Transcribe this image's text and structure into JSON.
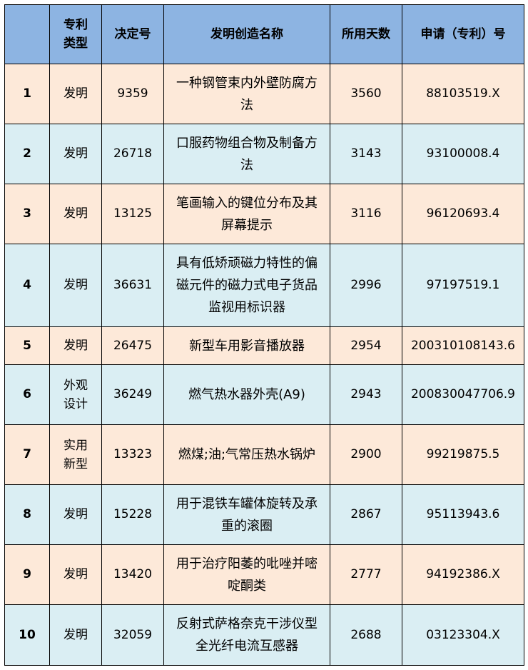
{
  "colors": {
    "header": "#8db4e2",
    "row_a": "#fde9d9",
    "row_b": "#daeef3"
  },
  "headers": [
    "",
    "专利类型",
    "决定号",
    "发明创造名称",
    "所用天数",
    "申请（专利）号"
  ],
  "rows": [
    {
      "no": "1",
      "type": "发明",
      "decision": "9359",
      "name": "一种钢管束内外壁防腐方法",
      "days": "3560",
      "app": "88103519.X"
    },
    {
      "no": "2",
      "type": "发明",
      "decision": "26718",
      "name": "口服药物组合物及制备方法",
      "days": "3143",
      "app": "93100008.4"
    },
    {
      "no": "3",
      "type": "发明",
      "decision": "13125",
      "name": "笔画输入的键位分布及其屏幕提示",
      "days": "3116",
      "app": "96120693.4"
    },
    {
      "no": "4",
      "type": "发明",
      "decision": "36631",
      "name": "具有低矫顽磁力特性的偏磁元件的磁力式电子货品监视用标识器",
      "days": "2996",
      "app": "97197519.1"
    },
    {
      "no": "5",
      "type": "发明",
      "decision": "26475",
      "name": "新型车用影音播放器",
      "days": "2954",
      "app": "200310108143.6"
    },
    {
      "no": "6",
      "type": "外观设计",
      "decision": "36249",
      "name": "燃气热水器外壳(A9)",
      "days": "2943",
      "app": "200830047706.9"
    },
    {
      "no": "7",
      "type": "实用新型",
      "decision": "13323",
      "name": "燃煤;油;气常压热水锅炉",
      "days": "2900",
      "app": "99219875.5"
    },
    {
      "no": "8",
      "type": "发明",
      "decision": "15228",
      "name": "用于混铁车罐体旋转及承重的滚圈",
      "days": "2867",
      "app": "95113943.6"
    },
    {
      "no": "9",
      "type": "发明",
      "decision": "13420",
      "name": "用于治疗阳萎的吡唑并嘧啶酮类",
      "days": "2777",
      "app": "94192386.X"
    },
    {
      "no": "10",
      "type": "发明",
      "decision": "32059",
      "name": "反射式萨格奈克干涉仪型全光纤电流互感器",
      "days": "2688",
      "app": "03123304.X"
    }
  ]
}
